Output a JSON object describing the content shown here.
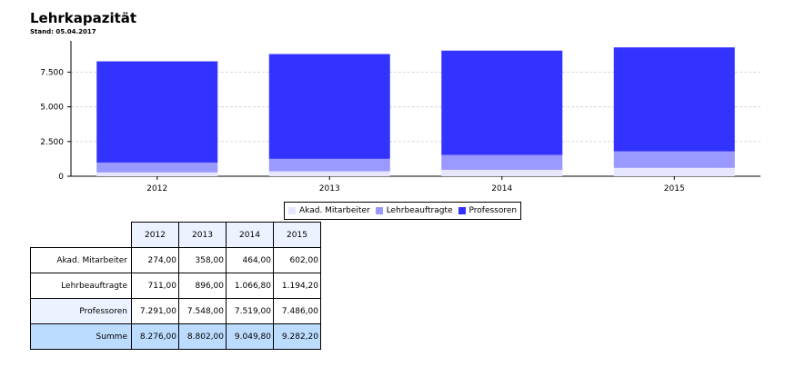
{
  "header": {
    "title": "Lehrkapazität",
    "subtitle": "Stand: 05.04.2017"
  },
  "legend": [
    "Akad. Mitarbeiter",
    "Lehrbeauftragte",
    "Professoren"
  ],
  "table": {
    "columns": [
      "2012",
      "2013",
      "2014",
      "2015"
    ],
    "rows": [
      {
        "label": "Akad. Mitarbeiter",
        "values": [
          "274,00",
          "358,00",
          "464,00",
          "602,00"
        ]
      },
      {
        "label": "Lehrbeauftragte",
        "values": [
          "711,00",
          "896,00",
          "1.066,80",
          "1.194,20"
        ]
      },
      {
        "label": "Professoren",
        "values": [
          "7.291,00",
          "7.548,00",
          "7.519,00",
          "7.486,00"
        ]
      }
    ],
    "sum": {
      "label": "Summe",
      "values": [
        "8.276,00",
        "8.802,00",
        "9.049,80",
        "9.282,20"
      ]
    }
  },
  "chart_data": {
    "type": "bar",
    "stacked": true,
    "categories": [
      "2012",
      "2013",
      "2014",
      "2015"
    ],
    "series": [
      {
        "name": "Akad. Mitarbeiter",
        "values": [
          274,
          358,
          464,
          602
        ],
        "color": "#e6e6ff"
      },
      {
        "name": "Lehrbeauftragte",
        "values": [
          711,
          896,
          1066.8,
          1194.2
        ],
        "color": "#9999ff"
      },
      {
        "name": "Professoren",
        "values": [
          7291,
          7548,
          7519,
          7486
        ],
        "color": "#3333ff"
      }
    ],
    "yticks": [
      "0",
      "2.500",
      "5.000",
      "7.500"
    ],
    "ytick_values": [
      0,
      2500,
      5000,
      7500
    ],
    "ylim": [
      0,
      10000
    ],
    "grid": true,
    "legend_position": "bottom-center",
    "title": "Lehrkapazität",
    "xlabel": "",
    "ylabel": ""
  }
}
